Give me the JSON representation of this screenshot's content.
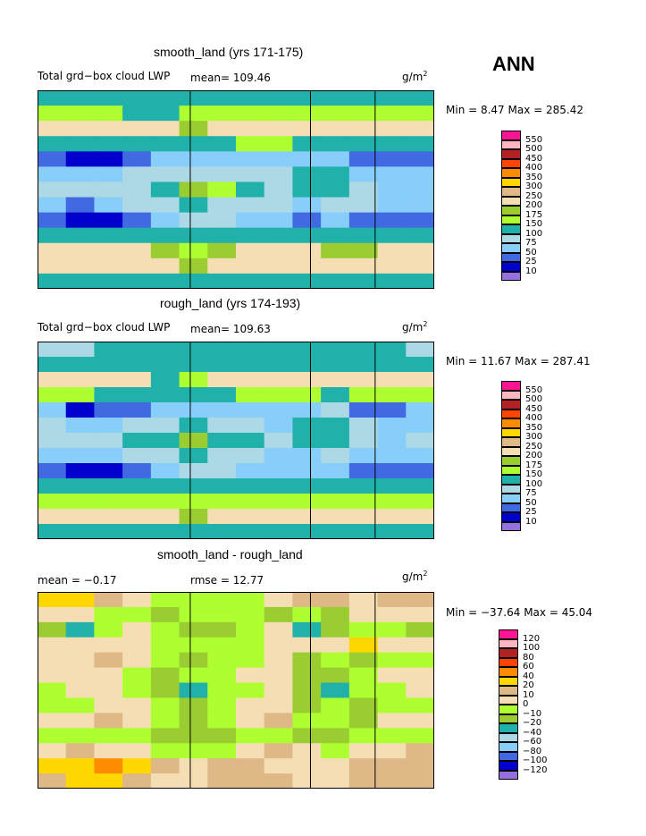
{
  "season": "ANN",
  "panels": [
    {
      "title": "smooth_land (yrs 171-175)",
      "left_label": "Total grd−box cloud LWP",
      "mean_label": "mean= 109.46",
      "unit_base": "g/m",
      "unit_exp": "2",
      "minmax": "Min =   8.47 Max = 285.42"
    },
    {
      "title": "rough_land (yrs 174-193)",
      "left_label": "Total grd−box cloud LWP",
      "mean_label": "mean= 109.63",
      "unit_base": "g/m",
      "unit_exp": "2",
      "minmax": "Min =  11.67 Max = 287.41"
    },
    {
      "title": "smooth_land - rough_land",
      "left_label": "mean =   −0.17",
      "mean_label": "rmse =   12.77",
      "unit_base": "g/m",
      "unit_exp": "2",
      "minmax": "Min = −37.64 Max =  45.04"
    }
  ],
  "colorbars": {
    "field_labels": [
      "550",
      "500",
      "450",
      "400",
      "350",
      "300",
      "250",
      "200",
      "175",
      "150",
      "100",
      "75",
      "50",
      "25",
      "10"
    ],
    "field_colors": [
      "#ff1493",
      "#ffb6c1",
      "#b22222",
      "#ff4500",
      "#ff8c00",
      "#ffd700",
      "#deb887",
      "#f5deb3",
      "#9acd32",
      "#adff2f",
      "#20b2aa",
      "#add8e6",
      "#87cefa",
      "#4169e1",
      "#0000cd",
      "#9370db"
    ],
    "diff_labels": [
      "120",
      "100",
      "80",
      "60",
      "40",
      "20",
      "10",
      "0",
      "−10",
      "−20",
      "−40",
      "−60",
      "−80",
      "−100",
      "−120"
    ],
    "diff_colors": [
      "#ff1493",
      "#ffb6c1",
      "#b22222",
      "#ff4500",
      "#ff8c00",
      "#ffd700",
      "#deb887",
      "#f5deb3",
      "#adff2f",
      "#9acd32",
      "#20b2aa",
      "#add8e6",
      "#87cefa",
      "#4169e1",
      "#0000cd",
      "#9370db"
    ]
  },
  "chart_data": [
    {
      "type": "heatmap",
      "title": "smooth_land (yrs 171-175)",
      "variable": "Total grd-box cloud LWP",
      "units": "g/m^2",
      "mean": 109.46,
      "min": 8.47,
      "max": 285.42,
      "contour_levels": [
        10,
        25,
        50,
        75,
        100,
        150,
        175,
        200,
        250,
        300,
        350,
        400,
        450,
        500,
        550
      ],
      "grid": [
        [
          120,
          110,
          100,
          100,
          110,
          115,
          120,
          115,
          110,
          110,
          105,
          110,
          115,
          120
        ],
        [
          165,
          160,
          150,
          145,
          140,
          150,
          160,
          160,
          155,
          150,
          150,
          155,
          160,
          165
        ],
        [
          215,
          230,
          235,
          225,
          205,
          195,
          210,
          225,
          230,
          225,
          205,
          210,
          215,
          220
        ],
        [
          140,
          145,
          140,
          135,
          130,
          130,
          140,
          150,
          150,
          145,
          135,
          140,
          145,
          145
        ],
        [
          30,
          20,
          15,
          30,
          60,
          70,
          65,
          60,
          55,
          60,
          70,
          35,
          25,
          30
        ],
        [
          70,
          50,
          60,
          75,
          90,
          95,
          90,
          80,
          75,
          110,
          120,
          70,
          60,
          55
        ],
        [
          95,
          80,
          85,
          95,
          130,
          180,
          150,
          100,
          90,
          120,
          125,
          80,
          60,
          70
        ],
        [
          65,
          45,
          55,
          80,
          90,
          100,
          95,
          85,
          75,
          70,
          80,
          75,
          55,
          65
        ],
        [
          25,
          15,
          20,
          30,
          60,
          80,
          75,
          65,
          60,
          45,
          55,
          35,
          25,
          30
        ],
        [
          110,
          105,
          110,
          115,
          120,
          130,
          125,
          120,
          115,
          115,
          110,
          115,
          120,
          115
        ],
        [
          200,
          210,
          215,
          200,
          180,
          170,
          185,
          200,
          215,
          210,
          195,
          195,
          205,
          210
        ],
        [
          235,
          245,
          240,
          225,
          205,
          190,
          210,
          230,
          240,
          235,
          215,
          220,
          230,
          235
        ],
        [
          130,
          125,
          120,
          115,
          110,
          110,
          115,
          120,
          125,
          125,
          120,
          125,
          130,
          130
        ]
      ]
    },
    {
      "type": "heatmap",
      "title": "rough_land (yrs 174-193)",
      "variable": "Total grd-box cloud LWP",
      "units": "g/m^2",
      "mean": 109.63,
      "min": 11.67,
      "max": 287.41,
      "contour_levels": [
        10,
        25,
        50,
        75,
        100,
        150,
        175,
        200,
        250,
        300,
        350,
        400,
        450,
        500,
        550
      ],
      "grid": [
        [
          80,
          95,
          110,
          120,
          125,
          130,
          135,
          130,
          125,
          120,
          115,
          110,
          100,
          90
        ],
        [
          120,
          115,
          110,
          115,
          120,
          125,
          130,
          125,
          120,
          120,
          120,
          125,
          125,
          120
        ],
        [
          220,
          230,
          225,
          210,
          140,
          150,
          215,
          230,
          235,
          230,
          210,
          215,
          220,
          225
        ],
        [
          150,
          150,
          145,
          140,
          140,
          140,
          145,
          150,
          150,
          150,
          145,
          150,
          150,
          150
        ],
        [
          60,
          20,
          25,
          40,
          60,
          70,
          65,
          60,
          55,
          55,
          75,
          40,
          40,
          55
        ],
        [
          75,
          55,
          65,
          80,
          95,
          100,
          95,
          85,
          70,
          110,
          120,
          75,
          60,
          70
        ],
        [
          90,
          80,
          90,
          100,
          130,
          180,
          140,
          100,
          85,
          120,
          125,
          90,
          70,
          80
        ],
        [
          65,
          50,
          60,
          85,
          95,
          100,
          95,
          90,
          70,
          70,
          80,
          70,
          55,
          65
        ],
        [
          30,
          15,
          20,
          30,
          60,
          80,
          75,
          65,
          60,
          50,
          55,
          40,
          30,
          35
        ],
        [
          125,
          120,
          120,
          120,
          120,
          130,
          125,
          120,
          120,
          120,
          120,
          120,
          125,
          125
        ],
        [
          150,
          150,
          155,
          150,
          150,
          160,
          160,
          160,
          155,
          150,
          150,
          155,
          155,
          155
        ],
        [
          225,
          235,
          235,
          220,
          200,
          195,
          210,
          225,
          230,
          225,
          205,
          215,
          225,
          225
        ],
        [
          120,
          115,
          110,
          110,
          110,
          110,
          115,
          120,
          125,
          125,
          120,
          125,
          125,
          120
        ]
      ]
    },
    {
      "type": "heatmap",
      "title": "smooth_land - rough_land",
      "units": "g/m^2",
      "mean": -0.17,
      "rmse": 12.77,
      "min": -37.64,
      "max": 45.04,
      "contour_levels": [
        -120,
        -100,
        -80,
        -60,
        -40,
        -20,
        -10,
        0,
        10,
        20,
        40,
        60,
        80,
        100,
        120
      ],
      "grid": [
        [
          30,
          25,
          10,
          5,
          -5,
          -10,
          -5,
          -10,
          5,
          15,
          10,
          5,
          10,
          15
        ],
        [
          5,
          0,
          -5,
          -10,
          -15,
          -5,
          -10,
          -5,
          -15,
          -10,
          -20,
          0,
          5,
          5
        ],
        [
          -15,
          -25,
          -5,
          5,
          -10,
          -20,
          -15,
          -10,
          0,
          -25,
          -20,
          -5,
          -10,
          -15
        ],
        [
          5,
          5,
          0,
          5,
          -5,
          -10,
          -10,
          -5,
          5,
          0,
          5,
          30,
          0,
          5
        ],
        [
          0,
          5,
          10,
          5,
          -5,
          -15,
          -10,
          -5,
          0,
          -15,
          -10,
          -20,
          -5,
          -5
        ],
        [
          0,
          5,
          5,
          -5,
          -15,
          -5,
          -10,
          0,
          5,
          -20,
          -15,
          -5,
          0,
          5
        ],
        [
          -5,
          0,
          5,
          -10,
          -20,
          -30,
          -10,
          -5,
          0,
          -20,
          -25,
          -10,
          -5,
          0
        ],
        [
          -5,
          -10,
          0,
          5,
          -10,
          -15,
          -5,
          0,
          5,
          -15,
          -10,
          -20,
          -5,
          -10
        ],
        [
          0,
          5,
          10,
          5,
          -5,
          -15,
          -5,
          0,
          10,
          -10,
          -5,
          -15,
          5,
          0
        ],
        [
          -5,
          -10,
          -5,
          -10,
          -15,
          -20,
          -15,
          -10,
          -5,
          -15,
          -20,
          -5,
          -10,
          -5
        ],
        [
          5,
          10,
          5,
          0,
          -5,
          -10,
          -5,
          5,
          10,
          0,
          -5,
          0,
          5,
          10
        ],
        [
          20,
          30,
          40,
          25,
          10,
          5,
          10,
          10,
          5,
          5,
          5,
          10,
          15,
          15
        ],
        [
          15,
          20,
          25,
          15,
          5,
          5,
          10,
          10,
          10,
          5,
          5,
          10,
          15,
          15
        ]
      ]
    }
  ]
}
